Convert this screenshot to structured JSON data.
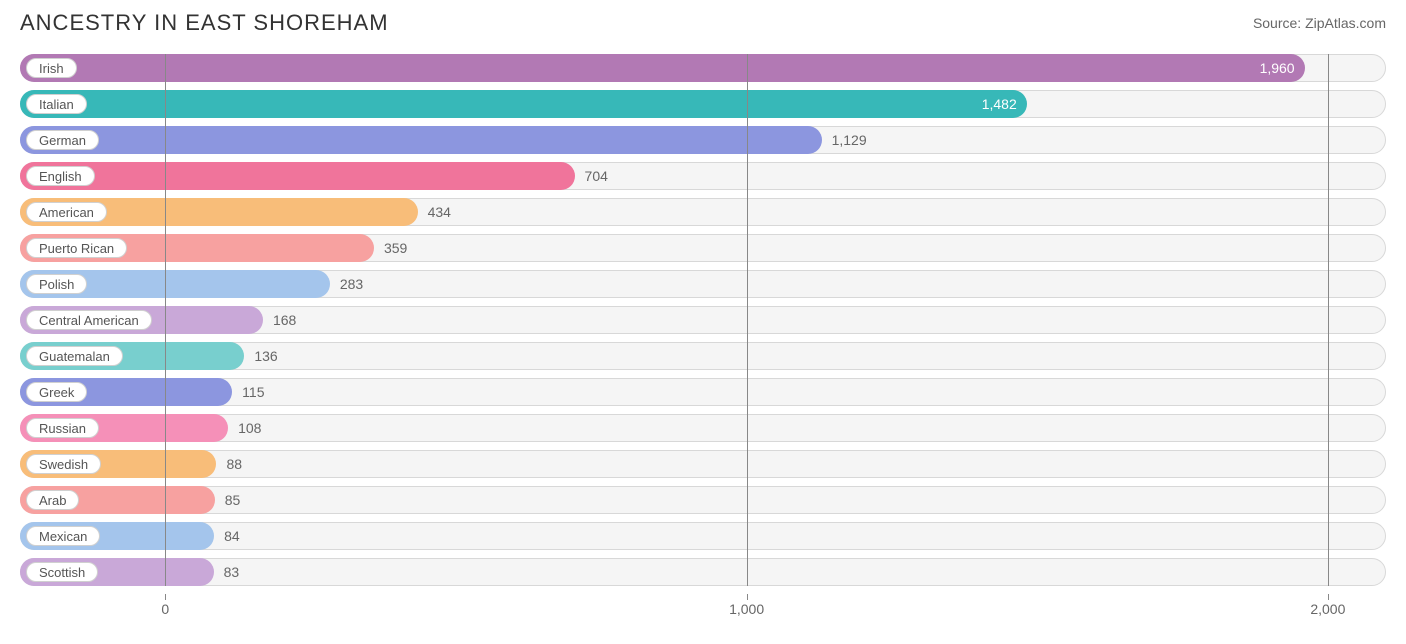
{
  "header": {
    "title": "ANCESTRY IN EAST SHOREHAM",
    "source": "Source: ZipAtlas.com"
  },
  "chart": {
    "type": "bar",
    "xlim": [
      -250,
      2100
    ],
    "ticks": [
      0,
      1000,
      2000
    ],
    "tick_labels": [
      "0",
      "1,000",
      "2,000"
    ],
    "track_color": "#f5f5f5",
    "track_border": "#d8d8d8",
    "grid_color": "#888888",
    "label_fontsize": 13,
    "value_fontsize": 14,
    "axis_fontsize": 14,
    "bars": [
      {
        "label": "Irish",
        "value": 1960,
        "display": "1,960",
        "color": "#b279b4",
        "value_inside": true,
        "value_color": "#ffffff"
      },
      {
        "label": "Italian",
        "value": 1482,
        "display": "1,482",
        "color": "#37b8b8",
        "value_inside": true,
        "value_color": "#ffffff"
      },
      {
        "label": "German",
        "value": 1129,
        "display": "1,129",
        "color": "#8c96df",
        "value_inside": false,
        "value_color": "#666666"
      },
      {
        "label": "English",
        "value": 704,
        "display": "704",
        "color": "#f0749b",
        "value_inside": false,
        "value_color": "#666666"
      },
      {
        "label": "American",
        "value": 434,
        "display": "434",
        "color": "#f8bd79",
        "value_inside": false,
        "value_color": "#666666"
      },
      {
        "label": "Puerto Rican",
        "value": 359,
        "display": "359",
        "color": "#f7a1a0",
        "value_inside": false,
        "value_color": "#666666"
      },
      {
        "label": "Polish",
        "value": 283,
        "display": "283",
        "color": "#a4c5ec",
        "value_inside": false,
        "value_color": "#666666"
      },
      {
        "label": "Central American",
        "value": 168,
        "display": "168",
        "color": "#c9a8d8",
        "value_inside": false,
        "value_color": "#666666"
      },
      {
        "label": "Guatemalan",
        "value": 136,
        "display": "136",
        "color": "#78cfce",
        "value_inside": false,
        "value_color": "#666666"
      },
      {
        "label": "Greek",
        "value": 115,
        "display": "115",
        "color": "#8c96df",
        "value_inside": false,
        "value_color": "#666666"
      },
      {
        "label": "Russian",
        "value": 108,
        "display": "108",
        "color": "#f590b8",
        "value_inside": false,
        "value_color": "#666666"
      },
      {
        "label": "Swedish",
        "value": 88,
        "display": "88",
        "color": "#f8bd79",
        "value_inside": false,
        "value_color": "#666666"
      },
      {
        "label": "Arab",
        "value": 85,
        "display": "85",
        "color": "#f7a1a0",
        "value_inside": false,
        "value_color": "#666666"
      },
      {
        "label": "Mexican",
        "value": 84,
        "display": "84",
        "color": "#a4c5ec",
        "value_inside": false,
        "value_color": "#666666"
      },
      {
        "label": "Scottish",
        "value": 83,
        "display": "83",
        "color": "#c9a8d8",
        "value_inside": false,
        "value_color": "#666666"
      }
    ]
  }
}
